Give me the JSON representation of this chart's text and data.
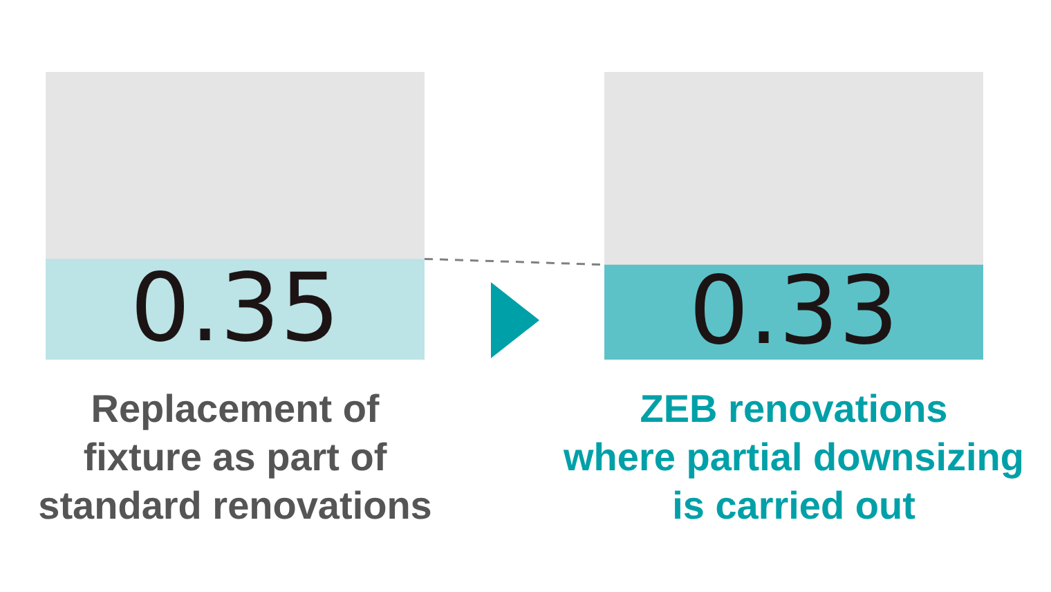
{
  "chart_data": {
    "type": "bar",
    "categories": [
      "Replacement of\nfixture as part of\nstandard renovations",
      "ZEB renovations\nwhere partial downsizing\nis carried out"
    ],
    "values": [
      0.35,
      0.33
    ],
    "colors": [
      "#bce3e6",
      "#5cc2c8"
    ],
    "ylim": [
      0,
      1
    ],
    "tick_labels": "x",
    "data_labels": true
  }
}
